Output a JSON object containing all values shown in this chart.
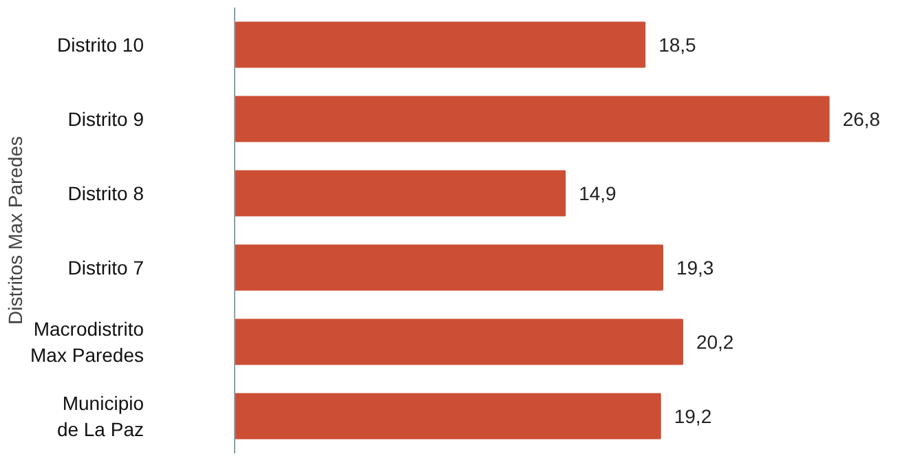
{
  "chart_data": {
    "type": "bar",
    "orientation": "horizontal",
    "ylabel": "Distritos Max Paredes",
    "categories": [
      "Distrito 10",
      "Distrito 9",
      "Distrito 8",
      "Distrito 7",
      "Macrodistrito\nMax Paredes",
      "Municipio\nde La Paz"
    ],
    "values": [
      18.5,
      26.8,
      14.9,
      19.3,
      20.2,
      19.2
    ],
    "value_labels": [
      "18,5",
      "26,8",
      "14,9",
      "19,3",
      "20,2",
      "19,2"
    ],
    "color": "#cc4e35",
    "grid": false,
    "tick_labels": "y"
  }
}
